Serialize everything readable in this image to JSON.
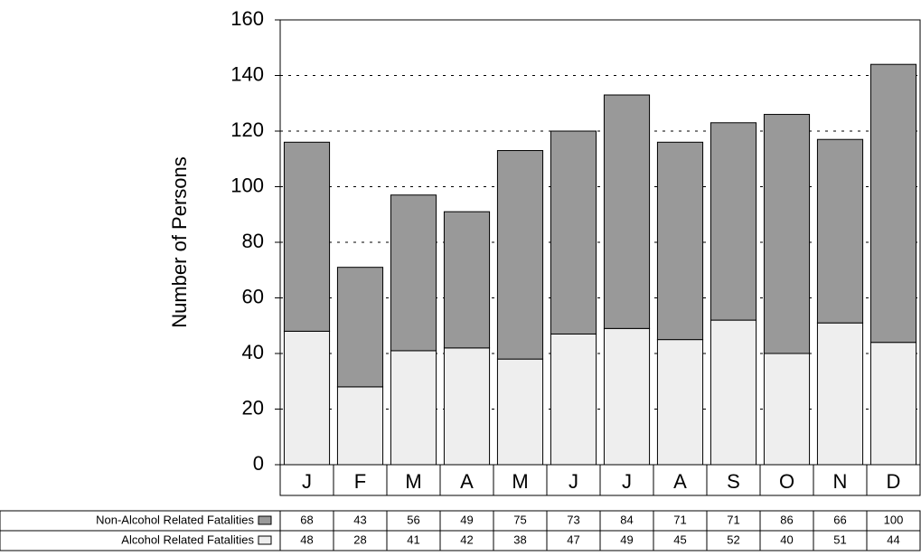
{
  "chart_data": {
    "type": "stacked_bar_table",
    "y_label": "Number of Persons",
    "categories": [
      "J",
      "F",
      "M",
      "A",
      "M",
      "J",
      "J",
      "A",
      "S",
      "O",
      "N",
      "D"
    ],
    "series": [
      {
        "name": "Non-Alcohol Related Fatalities",
        "color": "#999999",
        "values": [
          68,
          43,
          56,
          49,
          75,
          73,
          84,
          71,
          71,
          86,
          66,
          100
        ]
      },
      {
        "name": "Alcohol Related Fatalities",
        "color": "#eeeeee",
        "values": [
          48,
          28,
          41,
          42,
          38,
          47,
          49,
          45,
          52,
          40,
          51,
          44
        ]
      }
    ],
    "ylim": [
      0,
      160
    ],
    "yticks": [
      0,
      20,
      40,
      60,
      80,
      100,
      120,
      140,
      160
    ],
    "grid": true
  }
}
